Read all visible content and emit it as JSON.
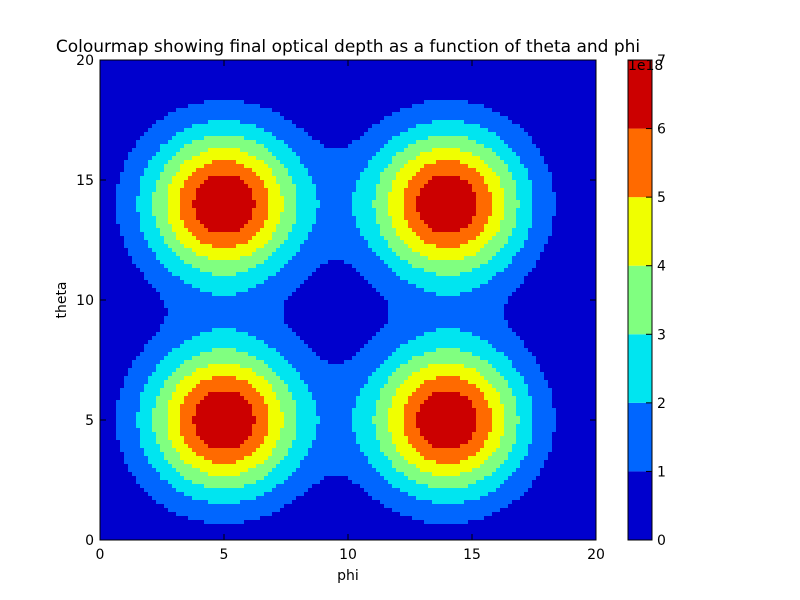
{
  "chart_data": {
    "type": "contour",
    "title": "Colourmap showing final optical depth as a function of theta and phi",
    "xlabel": "phi",
    "ylabel": "theta",
    "xlim": [
      0,
      20
    ],
    "ylim": [
      0,
      20
    ],
    "xticks": [
      "0",
      "5",
      "10",
      "15",
      "20"
    ],
    "yticks": [
      "0",
      "5",
      "10",
      "15",
      "20"
    ],
    "peaks": [
      {
        "x": 5,
        "y": 5
      },
      {
        "x": 14,
        "y": 5
      },
      {
        "x": 5,
        "y": 14
      },
      {
        "x": 14,
        "y": 14
      }
    ],
    "peak_value": 7,
    "levels": [
      0,
      1,
      2,
      3,
      4,
      5,
      6,
      7
    ],
    "level_colors": [
      "#0000cd",
      "#0066ff",
      "#00e5f0",
      "#80ff80",
      "#f0ff00",
      "#ff6a00",
      "#cc0000"
    ],
    "colorbar": {
      "ticks": [
        "0",
        "1",
        "2",
        "3",
        "4",
        "5",
        "6",
        "7"
      ],
      "scale_label": "1e18"
    },
    "grid": false
  }
}
